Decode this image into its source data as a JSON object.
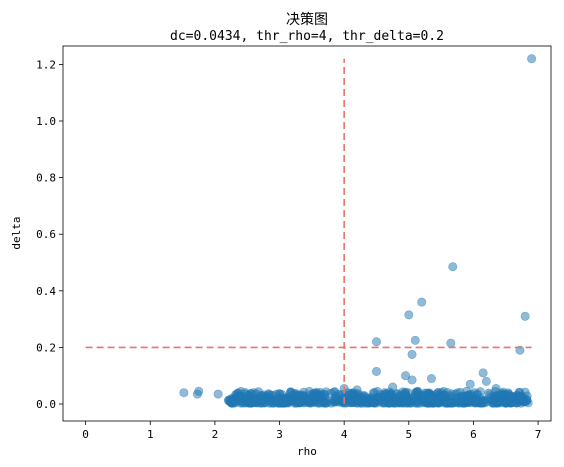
{
  "chart_data": {
    "type": "scatter",
    "title": "决策图",
    "subtitle": "dc=0.0434, thr_rho=4, thr_delta=0.2",
    "xlabel": "rho",
    "ylabel": "delta",
    "xlim": [
      -0.35,
      7.2
    ],
    "ylim": [
      -0.06,
      1.265
    ],
    "xticks": [
      "0",
      "1",
      "2",
      "3",
      "4",
      "5",
      "6",
      "7"
    ],
    "yticks": [
      "0.0",
      "0.2",
      "0.4",
      "0.6",
      "0.8",
      "1.0",
      "1.2"
    ],
    "grid": false,
    "point_color": "#1f77b4",
    "threshold_color": "#e8746a",
    "thresholds": {
      "rho": 4,
      "delta": 0.2,
      "rho_line_y": [
        0,
        1.22
      ],
      "delta_line_x": [
        0,
        6.9
      ]
    },
    "outliers": [
      {
        "x": 6.9,
        "y": 1.22
      },
      {
        "x": 5.68,
        "y": 0.485
      },
      {
        "x": 5.2,
        "y": 0.36
      },
      {
        "x": 5.0,
        "y": 0.315
      },
      {
        "x": 6.8,
        "y": 0.31
      },
      {
        "x": 5.1,
        "y": 0.225
      },
      {
        "x": 4.5,
        "y": 0.22
      },
      {
        "x": 5.65,
        "y": 0.215
      },
      {
        "x": 6.72,
        "y": 0.19
      },
      {
        "x": 5.05,
        "y": 0.175
      },
      {
        "x": 4.5,
        "y": 0.115
      },
      {
        "x": 6.15,
        "y": 0.11
      },
      {
        "x": 4.95,
        "y": 0.1
      },
      {
        "x": 5.35,
        "y": 0.09
      },
      {
        "x": 5.05,
        "y": 0.085
      },
      {
        "x": 6.2,
        "y": 0.08
      },
      {
        "x": 5.95,
        "y": 0.07
      },
      {
        "x": 4.75,
        "y": 0.06
      },
      {
        "x": 6.35,
        "y": 0.055
      },
      {
        "x": 4.0,
        "y": 0.055
      },
      {
        "x": 4.2,
        "y": 0.05
      },
      {
        "x": 1.52,
        "y": 0.04
      },
      {
        "x": 1.75,
        "y": 0.045
      },
      {
        "x": 1.73,
        "y": 0.035
      },
      {
        "x": 2.05,
        "y": 0.035
      }
    ],
    "cluster_band": {
      "x_range": [
        2.2,
        6.85
      ],
      "y_range": [
        0.003,
        0.045
      ],
      "count": 720
    }
  }
}
